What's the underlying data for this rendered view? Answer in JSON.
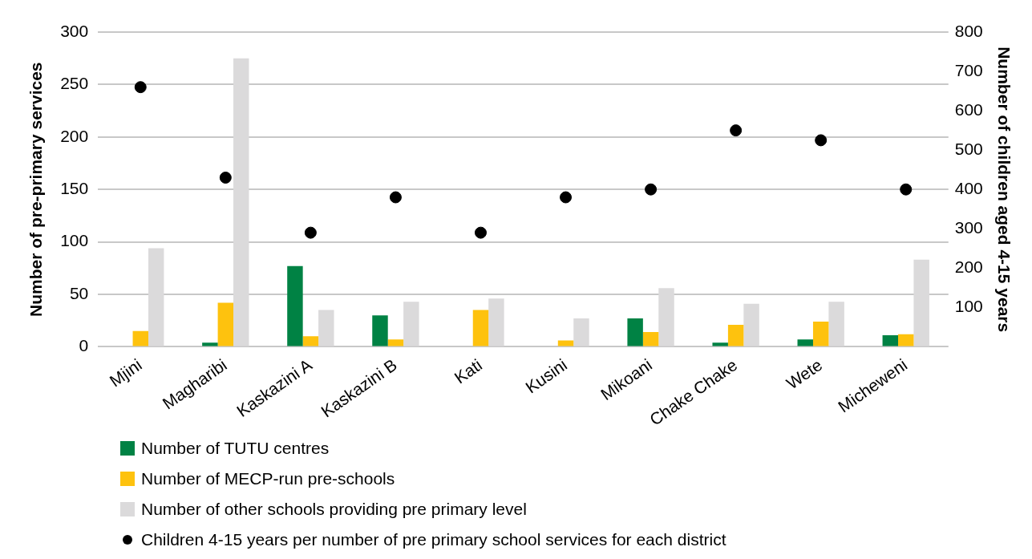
{
  "chart_data": {
    "type": "bar",
    "ylabel": "Number of pre-primary services",
    "y2label": "Number of children aged 4-15 years",
    "categories": [
      "Mjini",
      "Magharibi",
      "Kaskazini A",
      "Kaskazini B",
      "Kati",
      "Kusini",
      "Mikoani",
      "Chake Chake",
      "Wete",
      "Micheweni"
    ],
    "series": [
      {
        "name": "Number of TUTU centres",
        "color": "#008244",
        "values": [
          0,
          4,
          77,
          30,
          0,
          0,
          27,
          4,
          7,
          11
        ]
      },
      {
        "name": "Number of MECP-run pre-schools",
        "color": "#fec20e",
        "values": [
          15,
          42,
          10,
          7,
          35,
          6,
          14,
          21,
          24,
          12
        ]
      },
      {
        "name": "Number of other schools providing pre primary level",
        "color": "#dbdadb",
        "values": [
          94,
          275,
          35,
          43,
          46,
          27,
          56,
          41,
          43,
          83
        ]
      },
      {
        "name": "Children 4-15 years per number of pre primary school services for each district",
        "type": "scatter",
        "axis": "y2",
        "color": "#000000",
        "marker": "circle",
        "values": [
          660,
          430,
          290,
          380,
          290,
          380,
          400,
          550,
          525,
          400
        ]
      }
    ],
    "ylim": [
      0,
      300
    ],
    "yticks": [
      0,
      50,
      100,
      150,
      200,
      250,
      300
    ],
    "y2lim": [
      0,
      800
    ],
    "y2ticks": [
      100,
      200,
      300,
      400,
      500,
      600,
      700,
      800
    ],
    "grid": "y",
    "legend": "bottom"
  }
}
